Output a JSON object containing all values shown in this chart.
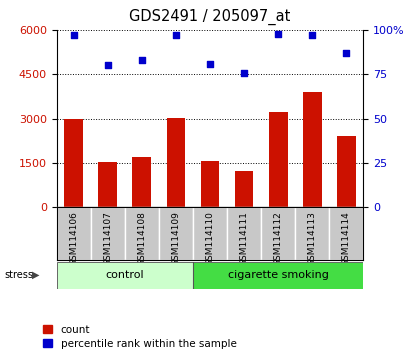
{
  "title": "GDS2491 / 205097_at",
  "samples": [
    "GSM114106",
    "GSM114107",
    "GSM114108",
    "GSM114109",
    "GSM114110",
    "GSM114111",
    "GSM114112",
    "GSM114113",
    "GSM114114"
  ],
  "counts": [
    2980,
    1530,
    1700,
    3020,
    1570,
    1230,
    3220,
    3900,
    2400
  ],
  "percentile_ranks": [
    97,
    80,
    83,
    97,
    81,
    76,
    98,
    97,
    87
  ],
  "bar_color": "#cc1100",
  "dot_color": "#0000cc",
  "groups": [
    {
      "label": "control",
      "start": 0,
      "end": 4,
      "color": "#ccffcc"
    },
    {
      "label": "cigarette smoking",
      "start": 4,
      "end": 9,
      "color": "#44dd44"
    }
  ],
  "stress_label": "stress",
  "ylim_left": [
    0,
    6000
  ],
  "ylim_right": [
    0,
    100
  ],
  "yticks_left": [
    0,
    1500,
    3000,
    4500,
    6000
  ],
  "yticks_right": [
    0,
    25,
    50,
    75,
    100
  ],
  "legend_count_label": "count",
  "legend_pct_label": "percentile rank within the sample",
  "background_color": "#ffffff",
  "tick_area_color": "#c8c8c8",
  "grid_color": "#000000",
  "title_fontsize": 10.5,
  "bar_width": 0.55
}
